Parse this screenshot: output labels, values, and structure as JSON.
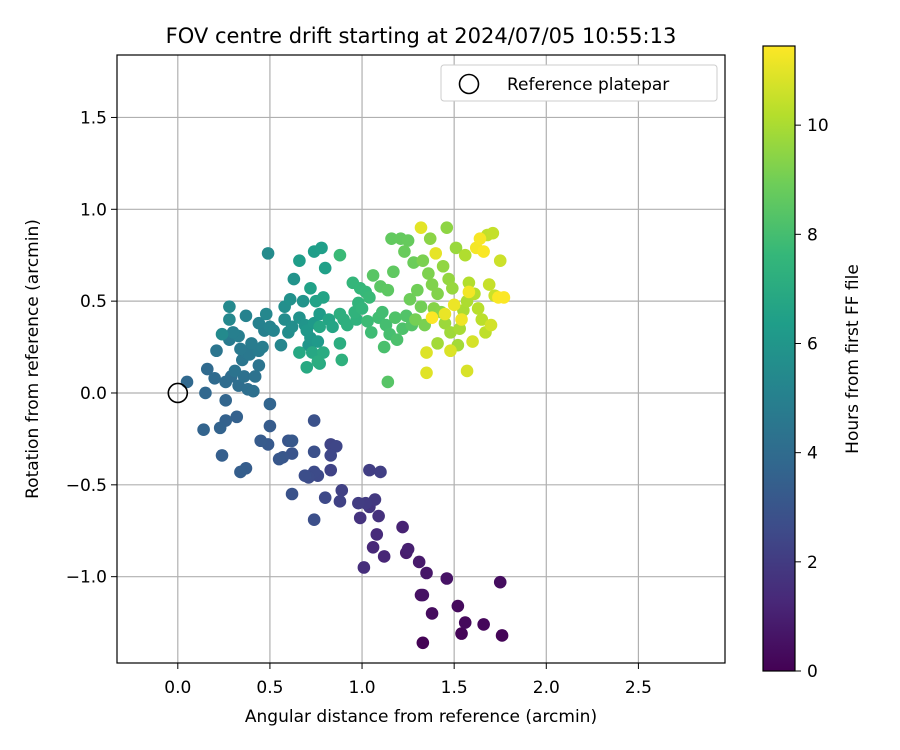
{
  "chart_data": {
    "type": "scatter",
    "title": "FOV centre drift starting at 2024/07/05 10:55:13",
    "xlabel": "Angular distance from reference (arcmin)",
    "ylabel": "Rotation from reference (arcmin)",
    "xlim": [
      -0.33,
      2.97
    ],
    "ylim": [
      -1.47,
      1.84
    ],
    "x_ticks": [
      0.0,
      0.5,
      1.0,
      1.5,
      2.0,
      2.5
    ],
    "x_tick_labels": [
      "0.0",
      "0.5",
      "1.0",
      "1.5",
      "2.0",
      "2.5"
    ],
    "y_ticks": [
      -1.0,
      -0.5,
      0.0,
      0.5,
      1.0,
      1.5
    ],
    "y_tick_labels": [
      "−1.0",
      "−0.5",
      "0.0",
      "0.5",
      "1.0",
      "1.5"
    ],
    "grid": true,
    "legend": {
      "placement": "top-right",
      "label": "Reference platepar"
    },
    "reference_point": {
      "x": 0.0,
      "y": 0.0
    },
    "colorbar": {
      "label": "Hours from first FF file",
      "colormap": "viridis",
      "range": [
        0,
        11.45
      ],
      "ticks": [
        0,
        2,
        4,
        6,
        8,
        10
      ],
      "tick_labels": [
        "0",
        "2",
        "4",
        "6",
        "8",
        "10"
      ]
    },
    "points": [
      {
        "x": 1.33,
        "y": -1.36,
        "h": 0.05
      },
      {
        "x": 1.54,
        "y": -1.31,
        "h": 0.1
      },
      {
        "x": 1.76,
        "y": -1.32,
        "h": 0.12
      },
      {
        "x": 1.66,
        "y": -1.26,
        "h": 0.2
      },
      {
        "x": 1.56,
        "y": -1.25,
        "h": 0.25
      },
      {
        "x": 1.52,
        "y": -1.16,
        "h": 0.3
      },
      {
        "x": 1.38,
        "y": -1.2,
        "h": 0.35
      },
      {
        "x": 1.75,
        "y": -1.03,
        "h": 0.4
      },
      {
        "x": 1.32,
        "y": -1.1,
        "h": 0.5
      },
      {
        "x": 1.33,
        "y": -1.1,
        "h": 0.55
      },
      {
        "x": 1.46,
        "y": -1.01,
        "h": 0.6
      },
      {
        "x": 1.35,
        "y": -0.98,
        "h": 0.7
      },
      {
        "x": 1.31,
        "y": -0.92,
        "h": 0.8
      },
      {
        "x": 1.24,
        "y": -0.87,
        "h": 0.9
      },
      {
        "x": 1.25,
        "y": -0.85,
        "h": 1.0
      },
      {
        "x": 1.22,
        "y": -0.73,
        "h": 1.1
      },
      {
        "x": 1.12,
        "y": -0.89,
        "h": 1.2
      },
      {
        "x": 1.06,
        "y": -0.84,
        "h": 1.3
      },
      {
        "x": 1.08,
        "y": -0.77,
        "h": 1.4
      },
      {
        "x": 1.01,
        "y": -0.95,
        "h": 1.5
      },
      {
        "x": 1.09,
        "y": -0.67,
        "h": 1.6
      },
      {
        "x": 0.99,
        "y": -0.68,
        "h": 1.7
      },
      {
        "x": 1.04,
        "y": -0.62,
        "h": 1.8
      },
      {
        "x": 1.07,
        "y": -0.58,
        "h": 1.9
      },
      {
        "x": 1.02,
        "y": -0.6,
        "h": 2.0
      },
      {
        "x": 0.98,
        "y": -0.6,
        "h": 2.05
      },
      {
        "x": 1.04,
        "y": -0.42,
        "h": 2.1
      },
      {
        "x": 1.1,
        "y": -0.43,
        "h": 2.15
      },
      {
        "x": 0.89,
        "y": -0.53,
        "h": 2.2
      },
      {
        "x": 0.88,
        "y": -0.59,
        "h": 2.25
      },
      {
        "x": 0.83,
        "y": -0.42,
        "h": 2.3
      },
      {
        "x": 0.83,
        "y": -0.28,
        "h": 2.35
      },
      {
        "x": 0.86,
        "y": -0.29,
        "h": 2.4
      },
      {
        "x": 0.83,
        "y": -0.34,
        "h": 2.45
      },
      {
        "x": 0.8,
        "y": -0.57,
        "h": 2.5
      },
      {
        "x": 0.76,
        "y": -0.45,
        "h": 2.55
      },
      {
        "x": 0.74,
        "y": -0.43,
        "h": 2.6
      },
      {
        "x": 0.71,
        "y": -0.46,
        "h": 2.65
      },
      {
        "x": 0.69,
        "y": -0.45,
        "h": 2.7
      },
      {
        "x": 0.74,
        "y": -0.69,
        "h": 2.75
      },
      {
        "x": 0.74,
        "y": -0.32,
        "h": 2.8
      },
      {
        "x": 0.74,
        "y": -0.15,
        "h": 2.85
      },
      {
        "x": 0.62,
        "y": -0.55,
        "h": 2.9
      },
      {
        "x": 0.62,
        "y": -0.33,
        "h": 2.95
      },
      {
        "x": 0.6,
        "y": -0.26,
        "h": 3.0
      },
      {
        "x": 0.57,
        "y": -0.35,
        "h": 3.05
      },
      {
        "x": 0.55,
        "y": -0.36,
        "h": 3.1
      },
      {
        "x": 0.62,
        "y": -0.26,
        "h": 3.15
      },
      {
        "x": 0.49,
        "y": -0.28,
        "h": 3.2
      },
      {
        "x": 0.45,
        "y": -0.26,
        "h": 3.25
      },
      {
        "x": 0.5,
        "y": -0.18,
        "h": 3.3
      },
      {
        "x": 0.37,
        "y": -0.41,
        "h": 3.35
      },
      {
        "x": 0.34,
        "y": -0.43,
        "h": 3.4
      },
      {
        "x": 0.24,
        "y": -0.34,
        "h": 3.45
      },
      {
        "x": 0.32,
        "y": -0.13,
        "h": 3.5
      },
      {
        "x": 0.26,
        "y": -0.15,
        "h": 3.55
      },
      {
        "x": 0.23,
        "y": -0.19,
        "h": 3.6
      },
      {
        "x": 0.14,
        "y": -0.2,
        "h": 3.65
      },
      {
        "x": 0.5,
        "y": -0.06,
        "h": 3.7
      },
      {
        "x": 0.26,
        "y": -0.04,
        "h": 3.75
      },
      {
        "x": 0.15,
        "y": 0.0,
        "h": 3.8
      },
      {
        "x": 0.05,
        "y": 0.06,
        "h": 3.85
      },
      {
        "x": 0.16,
        "y": 0.13,
        "h": 3.9
      },
      {
        "x": 0.2,
        "y": 0.08,
        "h": 3.95
      },
      {
        "x": 0.26,
        "y": 0.06,
        "h": 4.0
      },
      {
        "x": 0.29,
        "y": 0.09,
        "h": 4.05
      },
      {
        "x": 0.33,
        "y": 0.04,
        "h": 4.1
      },
      {
        "x": 0.38,
        "y": 0.02,
        "h": 4.15
      },
      {
        "x": 0.41,
        "y": 0.01,
        "h": 4.2
      },
      {
        "x": 0.36,
        "y": 0.09,
        "h": 4.25
      },
      {
        "x": 0.42,
        "y": 0.09,
        "h": 4.3
      },
      {
        "x": 0.31,
        "y": 0.12,
        "h": 4.35
      },
      {
        "x": 0.44,
        "y": 0.15,
        "h": 4.4
      },
      {
        "x": 0.21,
        "y": 0.23,
        "h": 4.45
      },
      {
        "x": 0.35,
        "y": 0.18,
        "h": 4.5
      },
      {
        "x": 0.37,
        "y": 0.22,
        "h": 4.55
      },
      {
        "x": 0.39,
        "y": 0.21,
        "h": 4.6
      },
      {
        "x": 0.34,
        "y": 0.24,
        "h": 4.65
      },
      {
        "x": 0.28,
        "y": 0.29,
        "h": 4.7
      },
      {
        "x": 0.44,
        "y": 0.23,
        "h": 4.75
      },
      {
        "x": 0.4,
        "y": 0.27,
        "h": 4.8
      },
      {
        "x": 0.46,
        "y": 0.25,
        "h": 4.85
      },
      {
        "x": 0.33,
        "y": 0.31,
        "h": 4.9
      },
      {
        "x": 0.3,
        "y": 0.33,
        "h": 4.95
      },
      {
        "x": 0.47,
        "y": 0.34,
        "h": 5.0
      },
      {
        "x": 0.44,
        "y": 0.38,
        "h": 5.05
      },
      {
        "x": 0.37,
        "y": 0.42,
        "h": 5.1
      },
      {
        "x": 0.5,
        "y": 0.36,
        "h": 5.15
      },
      {
        "x": 0.52,
        "y": 0.34,
        "h": 5.2
      },
      {
        "x": 0.56,
        "y": 0.26,
        "h": 5.25
      },
      {
        "x": 0.48,
        "y": 0.43,
        "h": 5.3
      },
      {
        "x": 0.28,
        "y": 0.4,
        "h": 5.35
      },
      {
        "x": 0.28,
        "y": 0.47,
        "h": 5.4
      },
      {
        "x": 0.24,
        "y": 0.32,
        "h": 5.45
      },
      {
        "x": 0.49,
        "y": 0.76,
        "h": 5.5
      },
      {
        "x": 0.58,
        "y": 0.4,
        "h": 5.55
      },
      {
        "x": 0.6,
        "y": 0.33,
        "h": 5.6
      },
      {
        "x": 0.62,
        "y": 0.36,
        "h": 5.65
      },
      {
        "x": 0.58,
        "y": 0.47,
        "h": 5.7
      },
      {
        "x": 0.61,
        "y": 0.51,
        "h": 5.75
      },
      {
        "x": 0.66,
        "y": 0.41,
        "h": 5.8
      },
      {
        "x": 0.63,
        "y": 0.62,
        "h": 5.85
      },
      {
        "x": 0.68,
        "y": 0.5,
        "h": 5.9
      },
      {
        "x": 0.69,
        "y": 0.37,
        "h": 5.95
      },
      {
        "x": 0.71,
        "y": 0.26,
        "h": 6.0
      },
      {
        "x": 0.72,
        "y": 0.3,
        "h": 6.05
      },
      {
        "x": 0.7,
        "y": 0.34,
        "h": 6.1
      },
      {
        "x": 0.74,
        "y": 0.38,
        "h": 6.15
      },
      {
        "x": 0.76,
        "y": 0.28,
        "h": 6.2
      },
      {
        "x": 0.77,
        "y": 0.43,
        "h": 6.25
      },
      {
        "x": 0.66,
        "y": 0.72,
        "h": 6.3
      },
      {
        "x": 0.74,
        "y": 0.77,
        "h": 6.35
      },
      {
        "x": 0.78,
        "y": 0.79,
        "h": 6.4
      },
      {
        "x": 0.8,
        "y": 0.68,
        "h": 6.45
      },
      {
        "x": 0.72,
        "y": 0.57,
        "h": 6.5
      },
      {
        "x": 0.75,
        "y": 0.5,
        "h": 6.55
      },
      {
        "x": 0.79,
        "y": 0.52,
        "h": 6.6
      },
      {
        "x": 0.82,
        "y": 0.4,
        "h": 6.65
      },
      {
        "x": 0.84,
        "y": 0.36,
        "h": 6.7
      },
      {
        "x": 0.77,
        "y": 0.36,
        "h": 6.75
      },
      {
        "x": 0.73,
        "y": 0.22,
        "h": 6.8
      },
      {
        "x": 0.66,
        "y": 0.22,
        "h": 6.85
      },
      {
        "x": 0.7,
        "y": 0.14,
        "h": 6.9
      },
      {
        "x": 0.77,
        "y": 0.16,
        "h": 6.95
      },
      {
        "x": 0.79,
        "y": 0.22,
        "h": 7.0
      },
      {
        "x": 0.76,
        "y": 0.17,
        "h": 7.05
      },
      {
        "x": 0.88,
        "y": 0.27,
        "h": 7.1
      },
      {
        "x": 0.88,
        "y": 0.43,
        "h": 7.15
      },
      {
        "x": 0.9,
        "y": 0.4,
        "h": 7.2
      },
      {
        "x": 0.92,
        "y": 0.37,
        "h": 7.25
      },
      {
        "x": 0.89,
        "y": 0.18,
        "h": 7.3
      },
      {
        "x": 0.97,
        "y": 0.4,
        "h": 7.35
      },
      {
        "x": 0.96,
        "y": 0.44,
        "h": 7.4
      },
      {
        "x": 0.98,
        "y": 0.49,
        "h": 7.45
      },
      {
        "x": 1.0,
        "y": 0.46,
        "h": 7.5
      },
      {
        "x": 0.95,
        "y": 0.6,
        "h": 7.55
      },
      {
        "x": 0.99,
        "y": 0.57,
        "h": 7.6
      },
      {
        "x": 1.02,
        "y": 0.55,
        "h": 7.65
      },
      {
        "x": 1.04,
        "y": 0.52,
        "h": 7.7
      },
      {
        "x": 0.88,
        "y": 0.75,
        "h": 7.75
      },
      {
        "x": 1.03,
        "y": 0.39,
        "h": 7.8
      },
      {
        "x": 1.05,
        "y": 0.33,
        "h": 7.85
      },
      {
        "x": 1.09,
        "y": 0.41,
        "h": 7.9
      },
      {
        "x": 1.11,
        "y": 0.44,
        "h": 7.95
      },
      {
        "x": 1.13,
        "y": 0.37,
        "h": 8.0
      },
      {
        "x": 1.15,
        "y": 0.32,
        "h": 8.05
      },
      {
        "x": 1.12,
        "y": 0.25,
        "h": 8.1
      },
      {
        "x": 1.19,
        "y": 0.29,
        "h": 8.15
      },
      {
        "x": 1.22,
        "y": 0.35,
        "h": 8.2
      },
      {
        "x": 1.18,
        "y": 0.41,
        "h": 8.25
      },
      {
        "x": 1.24,
        "y": 0.42,
        "h": 8.3
      },
      {
        "x": 1.27,
        "y": 0.37,
        "h": 8.35
      },
      {
        "x": 1.14,
        "y": 0.06,
        "h": 8.4
      },
      {
        "x": 1.06,
        "y": 0.64,
        "h": 8.45
      },
      {
        "x": 1.1,
        "y": 0.58,
        "h": 8.5
      },
      {
        "x": 1.14,
        "y": 0.56,
        "h": 8.55
      },
      {
        "x": 1.17,
        "y": 0.66,
        "h": 8.6
      },
      {
        "x": 1.16,
        "y": 0.84,
        "h": 8.65
      },
      {
        "x": 1.21,
        "y": 0.84,
        "h": 8.7
      },
      {
        "x": 1.25,
        "y": 0.83,
        "h": 8.75
      },
      {
        "x": 1.23,
        "y": 0.77,
        "h": 8.8
      },
      {
        "x": 1.28,
        "y": 0.71,
        "h": 8.85
      },
      {
        "x": 1.26,
        "y": 0.51,
        "h": 8.9
      },
      {
        "x": 1.3,
        "y": 0.56,
        "h": 8.95
      },
      {
        "x": 1.32,
        "y": 0.47,
        "h": 9.0
      },
      {
        "x": 1.29,
        "y": 0.4,
        "h": 9.05
      },
      {
        "x": 1.34,
        "y": 0.37,
        "h": 9.1
      },
      {
        "x": 1.33,
        "y": 0.72,
        "h": 9.15
      },
      {
        "x": 1.36,
        "y": 0.65,
        "h": 9.2
      },
      {
        "x": 1.38,
        "y": 0.59,
        "h": 9.25
      },
      {
        "x": 1.41,
        "y": 0.54,
        "h": 9.3
      },
      {
        "x": 1.39,
        "y": 0.46,
        "h": 9.35
      },
      {
        "x": 1.43,
        "y": 0.44,
        "h": 9.4
      },
      {
        "x": 1.37,
        "y": 0.84,
        "h": 9.45
      },
      {
        "x": 1.46,
        "y": 0.9,
        "h": 9.5
      },
      {
        "x": 1.44,
        "y": 0.69,
        "h": 9.55
      },
      {
        "x": 1.47,
        "y": 0.62,
        "h": 9.6
      },
      {
        "x": 1.49,
        "y": 0.57,
        "h": 9.65
      },
      {
        "x": 1.51,
        "y": 0.79,
        "h": 9.7
      },
      {
        "x": 1.45,
        "y": 0.38,
        "h": 9.75
      },
      {
        "x": 1.48,
        "y": 0.33,
        "h": 9.8
      },
      {
        "x": 1.41,
        "y": 0.27,
        "h": 9.85
      },
      {
        "x": 1.52,
        "y": 0.26,
        "h": 9.9
      },
      {
        "x": 1.53,
        "y": 0.35,
        "h": 9.95
      },
      {
        "x": 1.55,
        "y": 0.45,
        "h": 10.0
      },
      {
        "x": 1.57,
        "y": 0.5,
        "h": 10.05
      },
      {
        "x": 1.56,
        "y": 0.75,
        "h": 10.1
      },
      {
        "x": 1.58,
        "y": 0.6,
        "h": 10.15
      },
      {
        "x": 1.61,
        "y": 0.54,
        "h": 10.2
      },
      {
        "x": 1.63,
        "y": 0.46,
        "h": 10.25
      },
      {
        "x": 1.65,
        "y": 0.4,
        "h": 10.3
      },
      {
        "x": 1.67,
        "y": 0.33,
        "h": 10.35
      },
      {
        "x": 1.68,
        "y": 0.86,
        "h": 10.4
      },
      {
        "x": 1.71,
        "y": 0.87,
        "h": 10.45
      },
      {
        "x": 1.69,
        "y": 0.59,
        "h": 10.5
      },
      {
        "x": 1.72,
        "y": 0.53,
        "h": 10.55
      },
      {
        "x": 1.75,
        "y": 0.72,
        "h": 10.6
      },
      {
        "x": 1.7,
        "y": 0.37,
        "h": 10.7
      },
      {
        "x": 1.6,
        "y": 0.28,
        "h": 10.75
      },
      {
        "x": 1.57,
        "y": 0.12,
        "h": 10.8
      },
      {
        "x": 1.48,
        "y": 0.23,
        "h": 10.85
      },
      {
        "x": 1.35,
        "y": 0.22,
        "h": 10.9
      },
      {
        "x": 1.35,
        "y": 0.11,
        "h": 10.95
      },
      {
        "x": 1.32,
        "y": 0.9,
        "h": 11.0
      },
      {
        "x": 1.4,
        "y": 0.76,
        "h": 11.05
      },
      {
        "x": 1.45,
        "y": 0.43,
        "h": 11.1
      },
      {
        "x": 1.5,
        "y": 0.48,
        "h": 11.15
      },
      {
        "x": 1.54,
        "y": 0.4,
        "h": 11.2
      },
      {
        "x": 1.58,
        "y": 0.55,
        "h": 11.25
      },
      {
        "x": 1.62,
        "y": 0.79,
        "h": 11.3
      },
      {
        "x": 1.64,
        "y": 0.84,
        "h": 11.35
      },
      {
        "x": 1.66,
        "y": 0.77,
        "h": 11.38
      },
      {
        "x": 1.74,
        "y": 0.52,
        "h": 11.4
      },
      {
        "x": 1.77,
        "y": 0.52,
        "h": 11.42
      },
      {
        "x": 1.38,
        "y": 0.41,
        "h": 11.44
      }
    ]
  }
}
